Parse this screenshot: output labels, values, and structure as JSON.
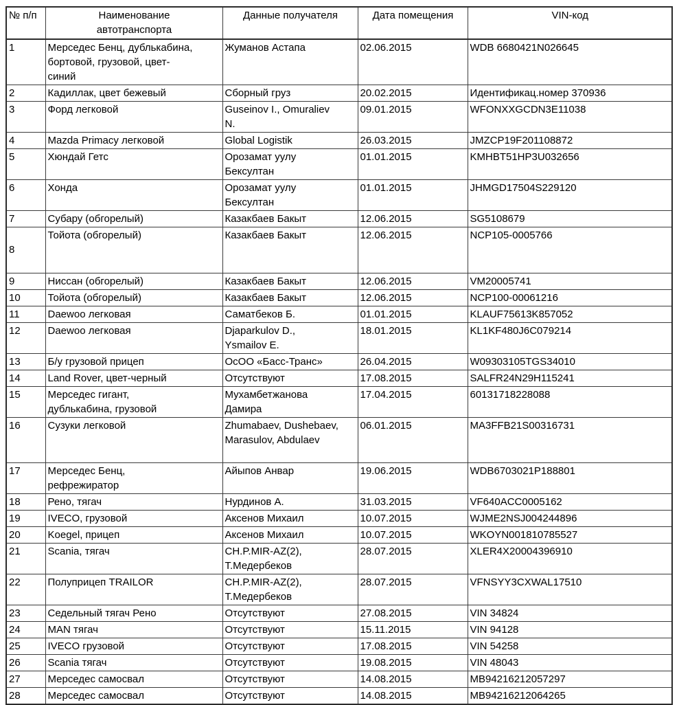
{
  "colors": {
    "border": "#3a3a3a",
    "outer_border": "#2b2b2b",
    "text": "#000000",
    "background": "#ffffff"
  },
  "document": {
    "table": {
      "headers": [
        "№ п/п",
        "Наименование\nавтотранспорта",
        "Данные получателя",
        "Дата помещения",
        "VIN-код"
      ],
      "rows": [
        {
          "num": "1",
          "name": "Мерседес Бенц, дублькабина,\nбортовой, грузовой, цвет-\nсиний",
          "recipient": "Жуманов Астапа",
          "date": "02.06.2015",
          "vin": "WDB 6680421N026645"
        },
        {
          "num": "2",
          "name": "Кадиллак, цвет бежевый",
          "recipient": "Сборный груз",
          "date": "20.02.2015",
          "vin": "Идентификац.номер 370936"
        },
        {
          "num": "3",
          "name": "Форд легковой",
          "recipient": "Guseinov I., Omuraliev\nN.",
          "date": "09.01.2015",
          "vin": "WFONXXGCDN3E11038"
        },
        {
          "num": "4",
          "name": "Mazda Primacy легковой",
          "recipient": "Global  Logistik",
          "date": "26.03.2015",
          "vin": "JMZCP19F201108872"
        },
        {
          "num": "5",
          "name": "Хюндай Гетс",
          "recipient": "Орозамат уулу\nБексултан",
          "date": "01.01.2015",
          "vin": "KMHBT51HP3U032656"
        },
        {
          "num": "6",
          "name": "Хонда",
          "recipient": "Орозамат уулу\nБексултан",
          "date": "01.01.2015",
          "vin": "JHMGD17504S229120"
        },
        {
          "num": "7",
          "name": "Субару (обгорелый)",
          "recipient": "Казакбаев Бакыт",
          "date": "12.06.2015",
          "vin": "SG5108679"
        },
        {
          "num": "8",
          "name": "Тойота (обгорелый)",
          "recipient": "Казакбаев Бакыт",
          "date": "12.06.2015",
          "vin": "NCP105-0005766"
        },
        {
          "num": "9",
          "name": "Ниссан (обгорелый)",
          "recipient": "Казакбаев Бакыт",
          "date": "12.06.2015",
          "vin": "VM20005741"
        },
        {
          "num": "10",
          "name": "Тойота (обгорелый)",
          "recipient": "Казакбаев Бакыт",
          "date": "12.06.2015",
          "vin": "NCP100-00061216"
        },
        {
          "num": "11",
          "name": "Daewoo легковая",
          "recipient": "Саматбеков Б.",
          "date": "01.01.2015",
          "vin": "KLAUF75613K857052"
        },
        {
          "num": "12",
          "name": "Daewoo легковая",
          "recipient": "Djaparkulov D.,\nYsmailov E.",
          "date": "18.01.2015",
          "vin": "KL1KF480J6C079214"
        },
        {
          "num": "13",
          "name": "Б/у грузовой прицеп",
          "recipient": "ОсОО «Басс-Транс»",
          "date": "26.04.2015",
          "vin": "W09303105TGS34010"
        },
        {
          "num": "14",
          "name": "Land Rover, цвет-черный",
          "recipient": "Отсутствуют",
          "date": "17.08.2015",
          "vin": "SALFR24N29H115241"
        },
        {
          "num": "15",
          "name": "Мерседес гигант,\nдублькабина, грузовой",
          "recipient": "Мухамбетжанова\nДамира",
          "date": "17.04.2015",
          "vin": "60131718228088"
        },
        {
          "num": "16",
          "name": "Сузуки легковой",
          "recipient": "Zhumabaev, Dushebaev,\nMarasulov, Abdulaev",
          "date": "06.01.2015",
          "vin": "MA3FFB21S00316731"
        },
        {
          "num": "17",
          "name": "Мерседес Бенц,\nрефрежиратор",
          "recipient": "Айыпов Анвар",
          "date": "19.06.2015",
          "vin": "WDB6703021P188801"
        },
        {
          "num": "18",
          "name": "Рено, тягач",
          "recipient": "Нурдинов А.",
          "date": "31.03.2015",
          "vin": "VF640ACC0005162"
        },
        {
          "num": "19",
          "name": "IVECO, грузовой",
          "recipient": "Аксенов Михаил",
          "date": "10.07.2015",
          "vin": "WJME2NSJ004244896"
        },
        {
          "num": "20",
          "name": "Koegel, прицеп",
          "recipient": "Аксенов Михаил",
          "date": "10.07.2015",
          "vin": "WKOYN001810785527"
        },
        {
          "num": "21",
          "name": "Scania, тягач",
          "recipient": "CH.P.MIR-AZ(2),\nТ.Медербеков",
          "date": "28.07.2015",
          "vin": "XLER4X20004396910"
        },
        {
          "num": "22",
          "name": "Полуприцеп TRAILOR",
          "recipient": "CH.P.MIR-AZ(2),\nТ.Медербеков",
          "date": "28.07.2015",
          "vin": "VFNSYY3CXWAL17510"
        },
        {
          "num": "23",
          "name": "Седельный тягач Рено",
          "recipient": "Отсутствуют",
          "date": "27.08.2015",
          "vin": "VIN 34824"
        },
        {
          "num": "24",
          "name": "MAN тягач",
          "recipient": "Отсутствуют",
          "date": "15.11.2015",
          "vin": "VIN 94128"
        },
        {
          "num": "25",
          "name": "IVECO грузовой",
          "recipient": "Отсутствуют",
          "date": "17.08.2015",
          "vin": "VIN 54258"
        },
        {
          "num": "26",
          "name": "Scania  тягач",
          "recipient": "Отсутствуют",
          "date": "19.08.2015",
          "vin": "VIN 48043"
        },
        {
          "num": "27",
          "name": "Мерседес самосвал",
          "recipient": "Отсутствуют",
          "date": "14.08.2015",
          "vin": "MB94216212057297"
        },
        {
          "num": "28",
          "name": "Мерседес самосвал",
          "recipient": "Отсутствуют",
          "date": "14.08.2015",
          "vin": "MB94216212064265"
        }
      ]
    }
  }
}
